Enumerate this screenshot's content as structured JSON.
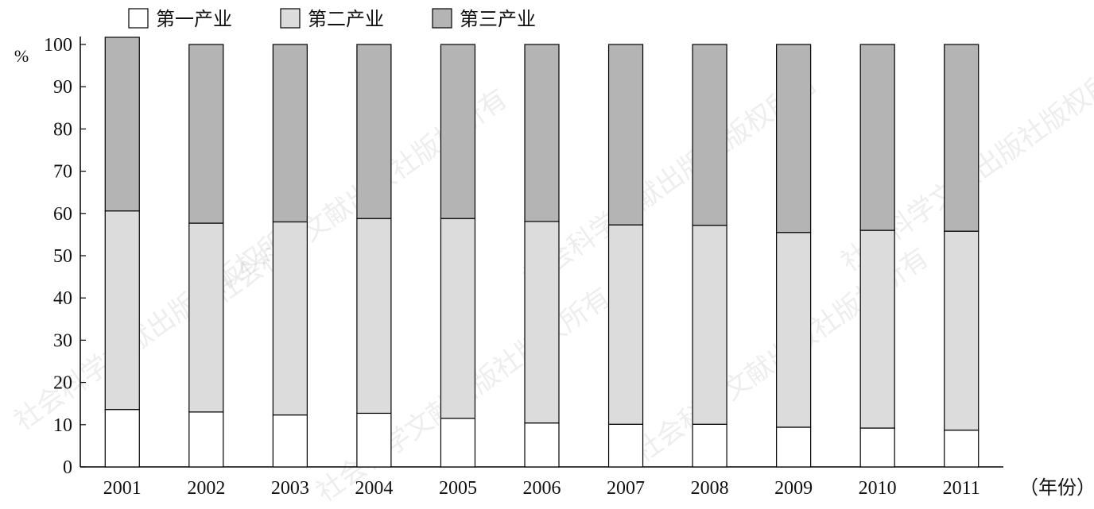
{
  "watermark_text": "社会科学文献出版社版权所有",
  "chart_data": {
    "type": "bar",
    "stacked": true,
    "categories": [
      "2001",
      "2002",
      "2003",
      "2004",
      "2005",
      "2006",
      "2007",
      "2008",
      "2009",
      "2010",
      "2011"
    ],
    "series": [
      {
        "name": "第一产业",
        "color": "#ffffff",
        "values": [
          13.6,
          13.0,
          12.3,
          12.7,
          11.5,
          10.4,
          10.1,
          10.1,
          9.4,
          9.2,
          8.7
        ]
      },
      {
        "name": "第二产业",
        "color": "#dcdcdc",
        "values": [
          47.0,
          44.7,
          45.7,
          46.1,
          47.3,
          47.7,
          47.2,
          47.1,
          46.1,
          46.8,
          47.1
        ]
      },
      {
        "name": "第三产业",
        "color": "#b4b4b4",
        "values": [
          41.1,
          42.3,
          42.0,
          41.2,
          41.2,
          41.9,
          42.7,
          42.8,
          44.5,
          44.0,
          44.2
        ]
      }
    ],
    "ylabel": "%",
    "xlabel": "（年份）",
    "ylim": [
      0,
      100
    ],
    "yticks": [
      0,
      10,
      20,
      30,
      40,
      50,
      60,
      70,
      80,
      90,
      100
    ],
    "legend_position": "top-center",
    "grid": false
  }
}
